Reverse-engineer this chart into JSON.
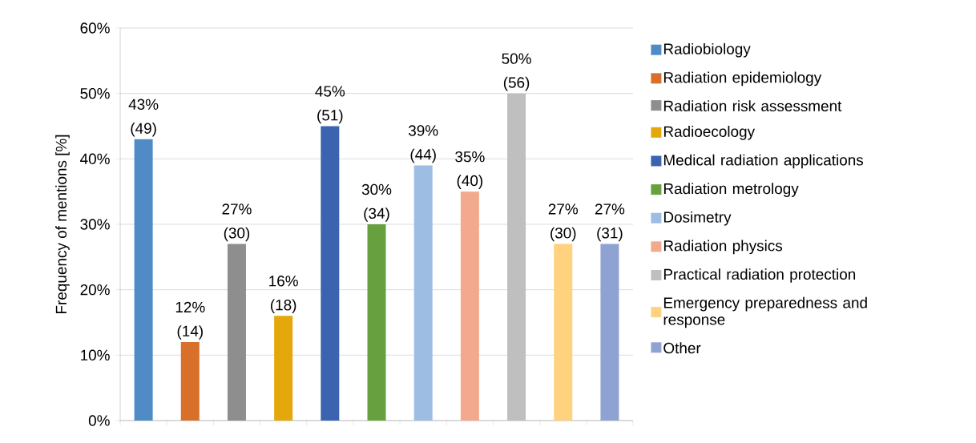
{
  "chart_data": {
    "type": "bar",
    "ylabel": "Frequency of mentions [%]",
    "categories": [
      null,
      null,
      null,
      null,
      null,
      null,
      null,
      null,
      null,
      null,
      null
    ],
    "ylim": [
      0,
      60
    ],
    "yticks": [
      {
        "value": 0,
        "label": "0%"
      },
      {
        "value": 10,
        "label": "10%"
      },
      {
        "value": 20,
        "label": "20%"
      },
      {
        "value": 30,
        "label": "30%"
      },
      {
        "value": 40,
        "label": "40%"
      },
      {
        "value": 50,
        "label": "50%"
      },
      {
        "value": 60,
        "label": "60%"
      }
    ],
    "grid": "y",
    "legend": "right",
    "series": [
      {
        "name": "Radiobiology",
        "color": "#4f8bc5",
        "values": [
          43,
          null,
          null,
          null,
          null,
          null,
          null,
          null,
          null,
          null,
          null
        ],
        "value_labels": [
          "43% (49)",
          null,
          null,
          null,
          null,
          null,
          null,
          null,
          null,
          null,
          null
        ]
      },
      {
        "name": "Radiation epidemiology",
        "color": "#d9702a",
        "values": [
          null,
          12,
          null,
          null,
          null,
          null,
          null,
          null,
          null,
          null,
          null
        ],
        "value_labels": [
          null,
          "12% (14)",
          null,
          null,
          null,
          null,
          null,
          null,
          null,
          null,
          null
        ]
      },
      {
        "name": "Radiation risk assessment",
        "color": "#8e8e8e",
        "values": [
          null,
          null,
          27,
          null,
          null,
          null,
          null,
          null,
          null,
          null,
          null
        ],
        "value_labels": [
          null,
          null,
          "27% (30)",
          null,
          null,
          null,
          null,
          null,
          null,
          null,
          null
        ]
      },
      {
        "name": "Radioecology",
        "color": "#e5a80c",
        "values": [
          null,
          null,
          null,
          16,
          null,
          null,
          null,
          null,
          null,
          null,
          null
        ],
        "value_labels": [
          null,
          null,
          null,
          "16% (18)",
          null,
          null,
          null,
          null,
          null,
          null,
          null
        ]
      },
      {
        "name": "Medical radiation applications",
        "color": "#3c63af",
        "values": [
          null,
          null,
          null,
          null,
          45,
          null,
          null,
          null,
          null,
          null,
          null
        ],
        "value_labels": [
          null,
          null,
          null,
          null,
          "45% (51)",
          null,
          null,
          null,
          null,
          null,
          null
        ]
      },
      {
        "name": "Radiation metrology",
        "color": "#66a03f",
        "values": [
          null,
          null,
          null,
          null,
          null,
          30,
          null,
          null,
          null,
          null,
          null
        ],
        "value_labels": [
          null,
          null,
          null,
          null,
          null,
          "30% (34)",
          null,
          null,
          null,
          null,
          null
        ]
      },
      {
        "name": "Dosimetry",
        "color": "#9dbde3",
        "values": [
          null,
          null,
          null,
          null,
          null,
          null,
          39,
          null,
          null,
          null,
          null
        ],
        "value_labels": [
          null,
          null,
          null,
          null,
          null,
          null,
          "39% (44)",
          null,
          null,
          null,
          null
        ]
      },
      {
        "name": "Radiation physics",
        "color": "#f2a98d",
        "values": [
          null,
          null,
          null,
          null,
          null,
          null,
          null,
          35,
          null,
          null,
          null
        ],
        "value_labels": [
          null,
          null,
          null,
          null,
          null,
          null,
          null,
          "35% (40)",
          null,
          null,
          null
        ]
      },
      {
        "name": "Practical radiation protection",
        "color": "#bfbfbf",
        "values": [
          null,
          null,
          null,
          null,
          null,
          null,
          null,
          null,
          50,
          null,
          null
        ],
        "value_labels": [
          null,
          null,
          null,
          null,
          null,
          null,
          null,
          null,
          "50% (56)",
          null,
          null
        ]
      },
      {
        "name": "Emergency preparedness and response",
        "color": "#ffd27f",
        "values": [
          null,
          null,
          null,
          null,
          null,
          null,
          null,
          null,
          null,
          27,
          null
        ],
        "value_labels": [
          null,
          null,
          null,
          null,
          null,
          null,
          null,
          null,
          null,
          "27% (30)",
          null
        ]
      },
      {
        "name": "Other",
        "color": "#8fa3d3",
        "values": [
          null,
          null,
          null,
          null,
          null,
          null,
          null,
          null,
          null,
          null,
          27
        ],
        "value_labels": [
          null,
          null,
          null,
          null,
          null,
          null,
          null,
          null,
          null,
          null,
          "27% (31)"
        ]
      }
    ]
  }
}
